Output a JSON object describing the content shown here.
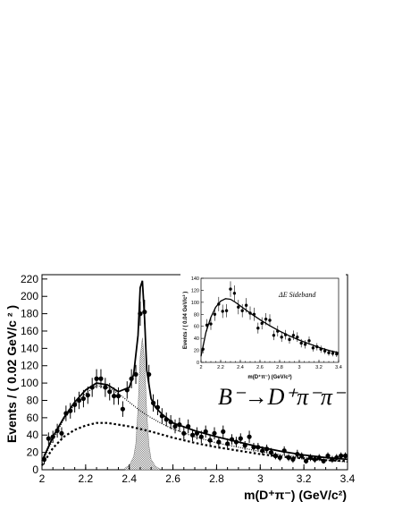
{
  "chart_data": [
    {
      "type": "scatter",
      "xlabel": "m(D⁺π⁻) (GeV/c²)",
      "ylabel": "Events / ( 0.02 GeV/c ² )",
      "xlim": [
        2.0,
        3.4
      ],
      "ylim": [
        0,
        225
      ],
      "x_ticks": [
        "2",
        "2.2",
        "2.4",
        "2.6",
        "2.8",
        "3",
        "3.2",
        "3.4"
      ],
      "y_ticks": [
        "0",
        "20",
        "40",
        "60",
        "80",
        "100",
        "120",
        "140",
        "160",
        "180",
        "200",
        "220"
      ],
      "annotation": "B⁻→D⁺π⁻π⁻",
      "series": [
        {
          "style": "points-with-errors",
          "x": [
            2.01,
            2.03,
            2.05,
            2.07,
            2.09,
            2.11,
            2.13,
            2.15,
            2.17,
            2.19,
            2.21,
            2.23,
            2.25,
            2.27,
            2.29,
            2.31,
            2.33,
            2.35,
            2.37,
            2.39,
            2.41,
            2.43,
            2.45,
            2.47,
            2.49,
            2.51,
            2.53,
            2.55,
            2.57,
            2.59,
            2.61,
            2.63,
            2.65,
            2.67,
            2.69,
            2.71,
            2.73,
            2.75,
            2.77,
            2.79,
            2.81,
            2.83,
            2.85,
            2.87,
            2.89,
            2.91,
            2.93,
            2.95,
            2.97,
            2.99,
            3.01,
            3.03,
            3.05,
            3.07,
            3.09,
            3.11,
            3.13,
            3.15,
            3.17,
            3.19,
            3.21,
            3.23,
            3.25,
            3.27,
            3.29,
            3.31,
            3.33,
            3.35,
            3.37,
            3.39
          ],
          "y": [
            12,
            36,
            38,
            45,
            42,
            65,
            68,
            75,
            80,
            82,
            86,
            95,
            105,
            105,
            95,
            90,
            85,
            85,
            70,
            92,
            105,
            110,
            180,
            182,
            110,
            77,
            72,
            62,
            58,
            55,
            50,
            52,
            42,
            50,
            40,
            42,
            38,
            44,
            34,
            42,
            32,
            44,
            30,
            35,
            32,
            36,
            28,
            38,
            26,
            26,
            22,
            24,
            20,
            16,
            14,
            22,
            14,
            12,
            18,
            16,
            10,
            14,
            12,
            14,
            10,
            16,
            12,
            14,
            16,
            16
          ],
          "yerr": [
            6,
            7,
            7,
            8,
            7,
            9,
            9,
            9,
            10,
            10,
            10,
            11,
            11,
            11,
            11,
            10,
            10,
            10,
            9,
            10,
            11,
            11,
            14,
            14,
            11,
            10,
            9,
            9,
            8,
            8,
            8,
            8,
            7,
            8,
            7,
            7,
            7,
            7,
            6,
            7,
            6,
            7,
            6,
            6,
            6,
            6,
            5,
            7,
            5,
            5,
            5,
            5,
            5,
            4,
            4,
            5,
            4,
            4,
            5,
            4,
            3,
            4,
            4,
            4,
            3,
            4,
            4,
            4,
            4,
            4
          ]
        },
        {
          "style": "solid-curve",
          "x": [
            2.0,
            2.05,
            2.1,
            2.15,
            2.2,
            2.25,
            2.3,
            2.35,
            2.4,
            2.42,
            2.44,
            2.45,
            2.46,
            2.47,
            2.48,
            2.5,
            2.52,
            2.55,
            2.6,
            2.7,
            2.8,
            2.9,
            3.0,
            3.1,
            3.2,
            3.3,
            3.4
          ],
          "y": [
            10,
            38,
            60,
            78,
            92,
            100,
            98,
            90,
            95,
            110,
            155,
            210,
            218,
            175,
            115,
            82,
            72,
            64,
            54,
            45,
            38,
            32,
            26,
            21,
            17,
            14,
            12
          ]
        },
        {
          "style": "dotted-curve",
          "x": [
            2.0,
            2.05,
            2.1,
            2.15,
            2.2,
            2.25,
            2.3,
            2.35,
            2.4,
            2.45,
            2.5,
            2.55,
            2.6,
            2.7,
            2.8,
            2.9,
            3.0,
            3.1,
            3.2,
            3.3,
            3.4
          ],
          "y": [
            8,
            35,
            58,
            75,
            88,
            97,
            95,
            88,
            78,
            68,
            60,
            53,
            47,
            38,
            31,
            26,
            21,
            17,
            14,
            11,
            9
          ]
        },
        {
          "style": "dashed-curve",
          "x": [
            2.0,
            2.05,
            2.1,
            2.15,
            2.2,
            2.25,
            2.3,
            2.4,
            2.5,
            2.6,
            2.7,
            2.8,
            2.9,
            3.0,
            3.1,
            3.2,
            3.3,
            3.4
          ],
          "y": [
            5,
            25,
            38,
            46,
            51,
            54,
            54,
            50,
            44,
            37,
            31,
            26,
            22,
            18,
            15,
            13,
            11,
            10
          ]
        },
        {
          "style": "hatched-peak",
          "x": [
            2.38,
            2.4,
            2.42,
            2.43,
            2.44,
            2.45,
            2.46,
            2.47,
            2.48,
            2.49,
            2.5,
            2.52,
            2.54
          ],
          "y": [
            2,
            5,
            15,
            30,
            70,
            130,
            152,
            125,
            65,
            28,
            12,
            4,
            1
          ]
        }
      ]
    },
    {
      "type": "scatter",
      "annotation": "ΔE Sideband",
      "xlabel": "m(D⁺π⁻) (GeV/c²)",
      "ylabel": "Events / ( 0.04 GeV/c² )",
      "xlim": [
        2.0,
        3.4
      ],
      "ylim": [
        0,
        140
      ],
      "x_ticks": [
        "2",
        "2.2",
        "2.4",
        "2.6",
        "2.8",
        "3",
        "3.2",
        "3.4"
      ],
      "y_ticks": [
        "0",
        "20",
        "40",
        "60",
        "80",
        "100",
        "120",
        "140"
      ],
      "series": [
        {
          "style": "points-with-errors",
          "x": [
            2.02,
            2.06,
            2.1,
            2.14,
            2.18,
            2.22,
            2.26,
            2.3,
            2.34,
            2.38,
            2.42,
            2.46,
            2.5,
            2.54,
            2.58,
            2.62,
            2.66,
            2.7,
            2.74,
            2.78,
            2.82,
            2.86,
            2.9,
            2.94,
            2.98,
            3.02,
            3.06,
            3.1,
            3.14,
            3.18,
            3.22,
            3.26,
            3.3,
            3.34,
            3.38
          ],
          "y": [
            22,
            62,
            64,
            80,
            97,
            85,
            86,
            122,
            115,
            92,
            86,
            95,
            82,
            80,
            57,
            65,
            72,
            70,
            45,
            52,
            42,
            46,
            38,
            45,
            42,
            32,
            30,
            36,
            24,
            26,
            22,
            19,
            16,
            15,
            14
          ],
          "yerr": [
            7,
            10,
            10,
            11,
            12,
            11,
            11,
            13,
            13,
            12,
            11,
            12,
            11,
            11,
            9,
            10,
            10,
            10,
            8,
            9,
            8,
            8,
            7,
            8,
            8,
            7,
            7,
            7,
            6,
            6,
            6,
            5,
            5,
            5,
            5
          ]
        },
        {
          "style": "solid-curve",
          "x": [
            2.0,
            2.05,
            2.1,
            2.15,
            2.2,
            2.25,
            2.3,
            2.35,
            2.4,
            2.5,
            2.6,
            2.7,
            2.8,
            2.9,
            3.0,
            3.1,
            3.2,
            3.3,
            3.4
          ],
          "y": [
            10,
            50,
            75,
            92,
            102,
            106,
            105,
            100,
            94,
            82,
            71,
            61,
            52,
            44,
            37,
            31,
            25,
            20,
            16
          ]
        }
      ]
    }
  ]
}
